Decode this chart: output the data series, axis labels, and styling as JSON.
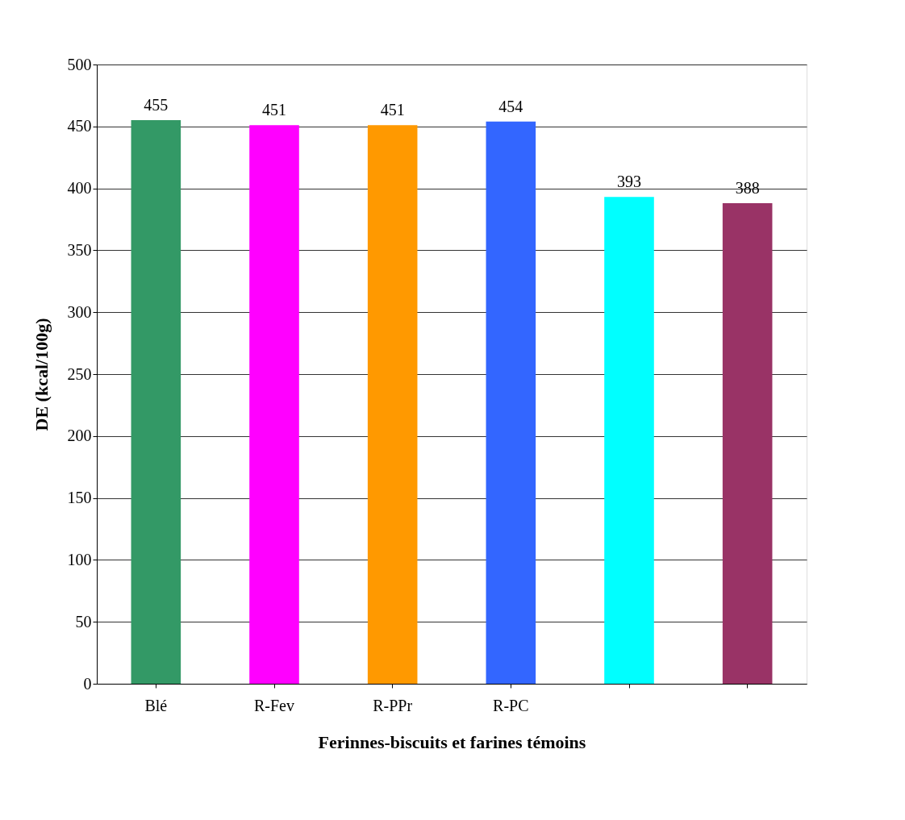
{
  "chart_data": {
    "type": "bar",
    "xlabel": "Ferinnes-biscuits et farines témoins",
    "ylabel": "DE (kcal/100g)",
    "categories": [
      "Blé",
      "R-Fev",
      "R-PPr",
      "R-PC",
      null,
      null
    ],
    "values": [
      455,
      451,
      451,
      454,
      393,
      388
    ],
    "colors": [
      "#339966",
      "#ff00ff",
      "#ff9900",
      "#3366ff",
      "#00ffff",
      "#993366"
    ],
    "ylim": [
      0,
      500
    ],
    "yticks": [
      0,
      50,
      100,
      150,
      200,
      250,
      300,
      350,
      400,
      450,
      500
    ],
    "grid": "y",
    "data_labels": true,
    "legend": false
  }
}
